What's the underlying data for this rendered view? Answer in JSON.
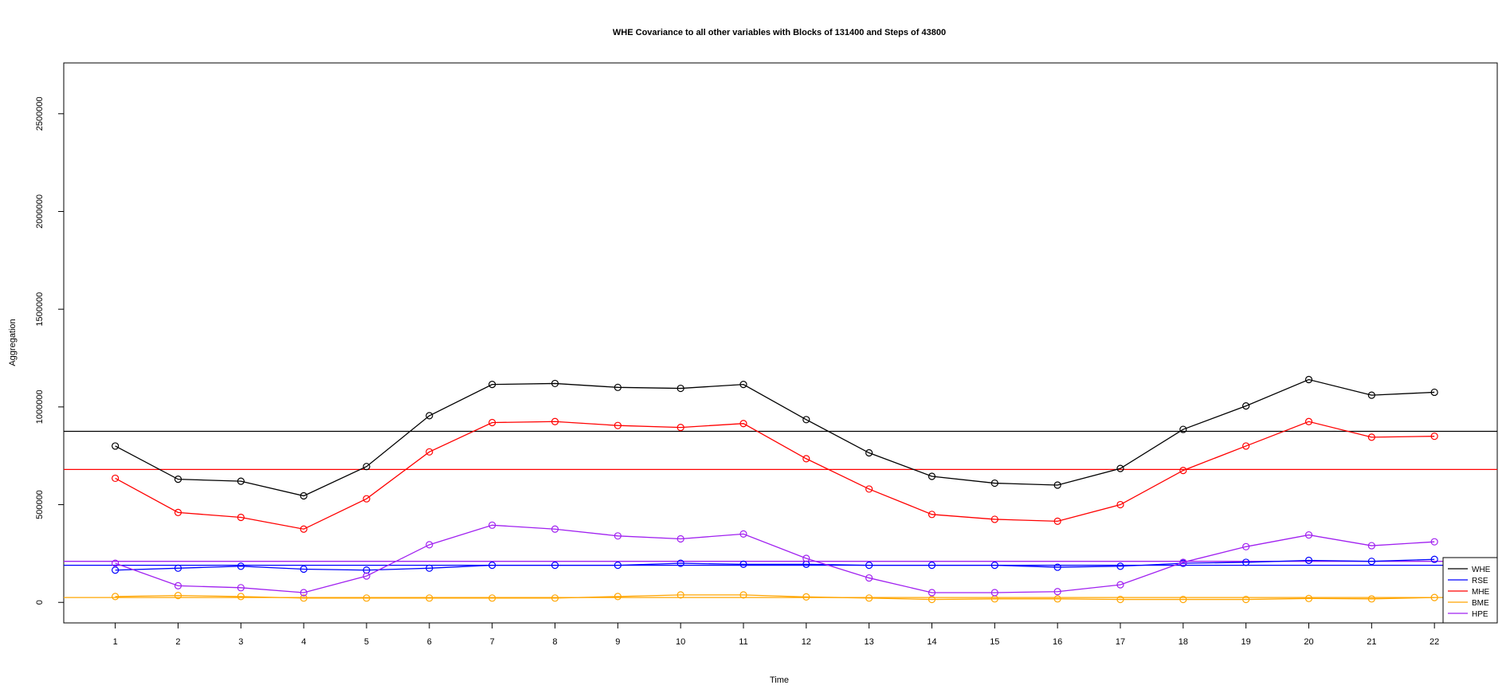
{
  "chart_data": {
    "type": "line",
    "title": "WHE Covariance to all other variables with Blocks of 131400 and Steps of 43800",
    "xlabel": "Time",
    "ylabel": "Aggregation",
    "x": [
      1,
      2,
      3,
      4,
      5,
      6,
      7,
      8,
      9,
      10,
      11,
      12,
      13,
      14,
      15,
      16,
      17,
      18,
      19,
      20,
      21,
      22
    ],
    "xlim": [
      0.18,
      23.0
    ],
    "ylim": [
      -105000,
      2760000
    ],
    "yticks": [
      0,
      500000,
      1000000,
      1500000,
      2000000,
      2500000
    ],
    "ytick_labels": [
      "0",
      "500000",
      "1000000",
      "1500000",
      "2000000",
      "2500000"
    ],
    "xtick_labels": [
      "1",
      "2",
      "3",
      "4",
      "5",
      "6",
      "7",
      "8",
      "9",
      "10",
      "11",
      "12",
      "13",
      "14",
      "15",
      "16",
      "17",
      "18",
      "19",
      "20",
      "21",
      "22"
    ],
    "grid": false,
    "legend_position": "bottom-right",
    "series": [
      {
        "name": "WHE",
        "color": "#000000",
        "values": [
          800000,
          630000,
          620000,
          545000,
          695000,
          955000,
          1115000,
          1120000,
          1100000,
          1095000,
          1115000,
          935000,
          765000,
          645000,
          610000,
          600000,
          685000,
          885000,
          1005000,
          1140000,
          1060000,
          1075000
        ],
        "mean": 875000
      },
      {
        "name": "RSE",
        "color": "#0000ff",
        "values": [
          165000,
          175000,
          185000,
          170000,
          165000,
          175000,
          190000,
          190000,
          190000,
          200000,
          195000,
          195000,
          190000,
          190000,
          190000,
          180000,
          185000,
          200000,
          205000,
          215000,
          210000,
          220000
        ],
        "mean": 190000
      },
      {
        "name": "MHE",
        "color": "#ff0000",
        "values": [
          635000,
          460000,
          435000,
          375000,
          530000,
          770000,
          920000,
          925000,
          905000,
          895000,
          915000,
          735000,
          580000,
          450000,
          425000,
          415000,
          500000,
          675000,
          800000,
          925000,
          845000,
          850000
        ],
        "mean": 680000
      },
      {
        "name": "BME",
        "color": "#ffa500",
        "values": [
          30000,
          35000,
          30000,
          22000,
          22000,
          22000,
          22000,
          22000,
          30000,
          38000,
          38000,
          28000,
          22000,
          15000,
          18000,
          18000,
          15000,
          15000,
          15000,
          20000,
          18000,
          25000
        ],
        "mean": 25000
      },
      {
        "name": "HPE",
        "color": "#a020f0",
        "values": [
          200000,
          85000,
          75000,
          50000,
          135000,
          295000,
          395000,
          375000,
          340000,
          325000,
          350000,
          225000,
          125000,
          50000,
          50000,
          55000,
          90000,
          205000,
          285000,
          345000,
          290000,
          310000
        ],
        "mean": 210000
      }
    ]
  }
}
